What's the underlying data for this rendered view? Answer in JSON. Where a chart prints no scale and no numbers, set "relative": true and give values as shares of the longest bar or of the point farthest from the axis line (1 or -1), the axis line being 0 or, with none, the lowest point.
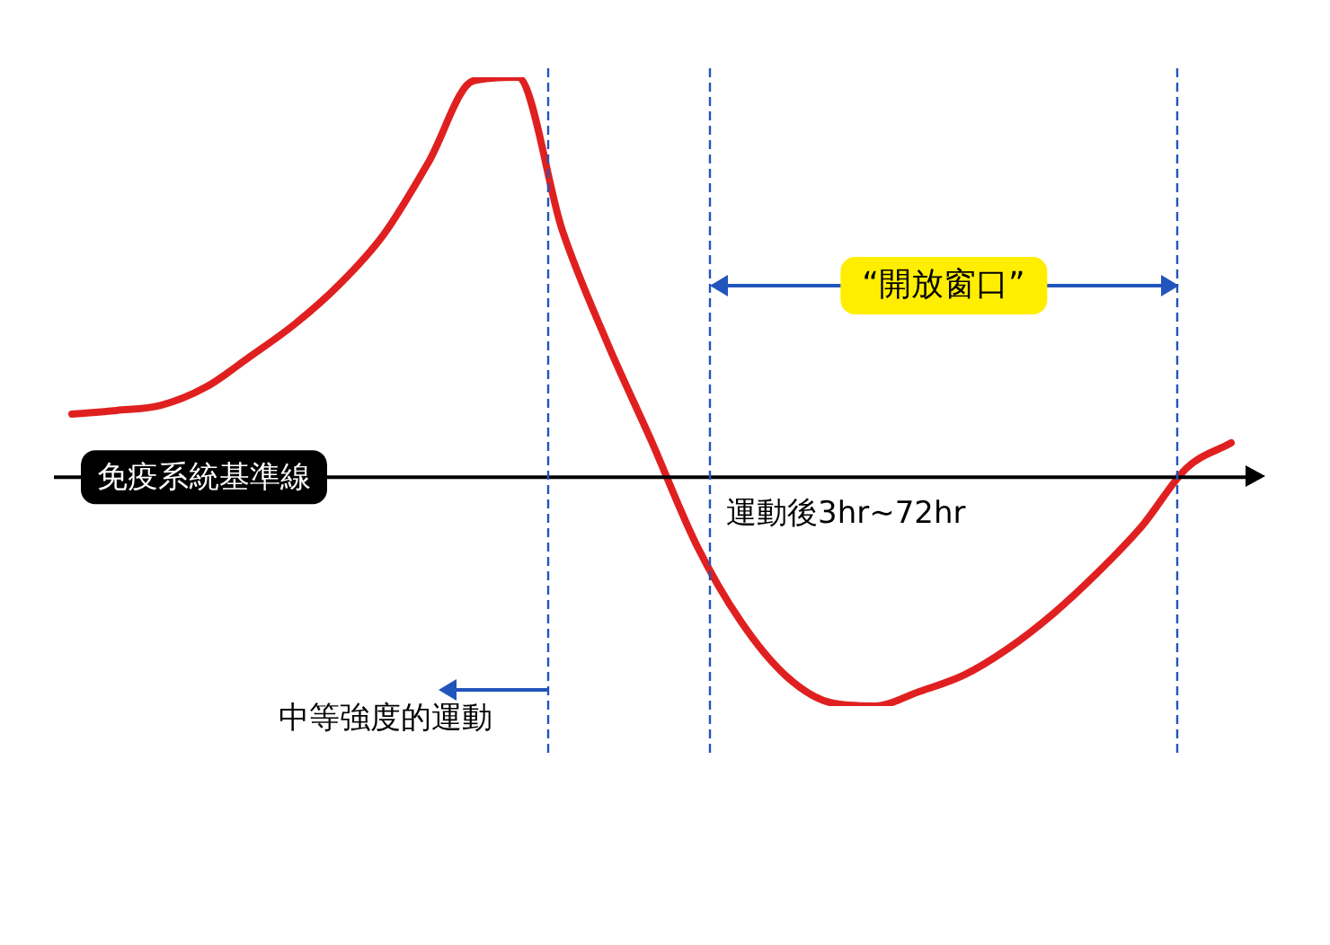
{
  "chart_data": {
    "type": "line",
    "relative": true,
    "categories": [
      null,
      null,
      null,
      null,
      null,
      null,
      null,
      null,
      null,
      null,
      null,
      null,
      null,
      null,
      null,
      null,
      null,
      null,
      null,
      null,
      null,
      null,
      null,
      null,
      null,
      null,
      null
    ],
    "series": [
      {
        "color": "#e02020",
        "values": [
          0.158,
          0.167,
          0.18,
          0.225,
          0.302,
          0.383,
          0.482,
          0.608,
          0.788,
          0.991,
          1,
          0.617,
          0.338,
          0.09,
          -0.167,
          -0.36,
          -0.495,
          -0.563,
          -0.572,
          -0.536,
          -0.495,
          -0.428,
          -0.342,
          -0.239,
          -0.122,
          0.023,
          0.086
        ]
      }
    ],
    "ref_lines": [
      {
        "axis": "y",
        "value": 0,
        "label": "免疫系統基準線",
        "color": "#000000"
      }
    ],
    "annotations": [
      "“開放窗口”",
      "運動後3hr~72hr",
      "中等強度的運動"
    ],
    "marker": "none",
    "line_style": "solid",
    "legend": false
  }
}
